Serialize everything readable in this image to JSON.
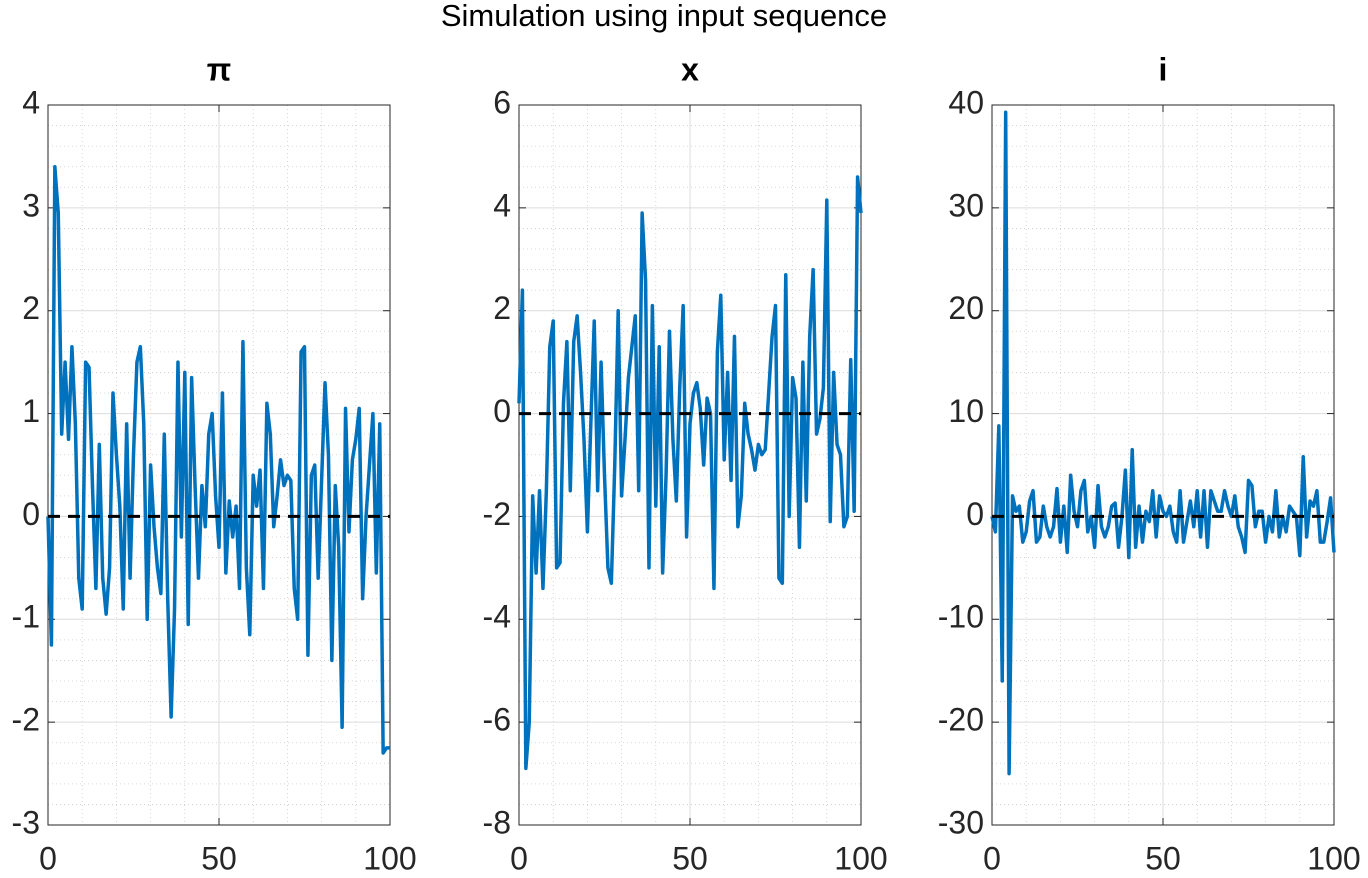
{
  "title": "Simulation using input sequence",
  "chart_data": [
    {
      "type": "line",
      "title": "π",
      "xlim": [
        0,
        100
      ],
      "xticks": [
        0,
        50,
        100
      ],
      "ylim": [
        -3,
        4
      ],
      "yticks": [
        -3,
        -2,
        -1,
        0,
        1,
        2,
        3,
        4
      ],
      "grid": true,
      "minor_grid": true,
      "minor_divisions": 5,
      "series": [
        {
          "color": "#0072bd",
          "x": [
            0,
            1,
            2,
            3,
            4,
            5,
            6,
            7,
            8,
            9,
            10,
            11,
            12,
            13,
            14,
            15,
            16,
            17,
            18,
            19,
            20,
            21,
            22,
            23,
            24,
            25,
            26,
            27,
            28,
            29,
            30,
            31,
            32,
            33,
            34,
            35,
            36,
            37,
            38,
            39,
            40,
            41,
            42,
            43,
            44,
            45,
            46,
            47,
            48,
            49,
            50,
            51,
            52,
            53,
            54,
            55,
            56,
            57,
            58,
            59,
            60,
            61,
            62,
            63,
            64,
            65,
            66,
            67,
            68,
            69,
            70,
            71,
            72,
            73,
            74,
            75,
            76,
            77,
            78,
            79,
            80,
            81,
            82,
            83,
            84,
            85,
            86,
            87,
            88,
            89,
            90,
            91,
            92,
            93,
            94,
            95,
            96,
            97,
            98,
            99,
            100
          ],
          "values": [
            0,
            -1.25,
            3.4,
            2.95,
            0.8,
            1.5,
            0.75,
            1.65,
            0.9,
            -0.6,
            -0.9,
            1.5,
            1.45,
            0.3,
            -0.7,
            0.7,
            -0.6,
            -0.95,
            -0.5,
            1.2,
            0.6,
            0.1,
            -0.9,
            0.9,
            -0.6,
            0.6,
            1.5,
            1.65,
            0.9,
            -1.0,
            0.5,
            -0.1,
            -0.5,
            -0.75,
            0.8,
            -0.8,
            -1.95,
            -0.9,
            1.5,
            -0.2,
            1.4,
            -1.05,
            1.35,
            0.3,
            -0.6,
            0.3,
            -0.1,
            0.8,
            1.0,
            0.2,
            -0.3,
            1.2,
            -0.55,
            0.15,
            -0.2,
            0.1,
            -0.7,
            1.7,
            -0.5,
            -1.15,
            0.4,
            0.1,
            0.45,
            -0.7,
            1.1,
            0.8,
            -0.1,
            0.2,
            0.55,
            0.3,
            0.4,
            0.35,
            -0.7,
            -1.0,
            1.6,
            1.65,
            -1.35,
            0.4,
            0.5,
            -0.6,
            0.35,
            1.3,
            0.6,
            -1.4,
            0.3,
            -0.3,
            -2.05,
            1.05,
            -0.15,
            0.55,
            0.75,
            1.05,
            -0.8,
            0.0,
            0.5,
            1.0,
            -0.55,
            0.9,
            -2.3,
            -2.25,
            -2.25
          ]
        },
        {
          "color": "#000000",
          "dashed": true,
          "x": [
            0,
            100
          ],
          "values": [
            0,
            0
          ]
        }
      ]
    },
    {
      "type": "line",
      "title": "x",
      "xlim": [
        0,
        100
      ],
      "xticks": [
        0,
        50,
        100
      ],
      "ylim": [
        -8,
        6
      ],
      "yticks": [
        -8,
        -6,
        -4,
        -2,
        0,
        2,
        4,
        6
      ],
      "grid": true,
      "minor_grid": true,
      "minor_divisions": 5,
      "series": [
        {
          "color": "#0072bd",
          "x": [
            0,
            1,
            2,
            3,
            4,
            5,
            6,
            7,
            8,
            9,
            10,
            11,
            12,
            13,
            14,
            15,
            16,
            17,
            18,
            19,
            20,
            21,
            22,
            23,
            24,
            25,
            26,
            27,
            28,
            29,
            30,
            31,
            32,
            33,
            34,
            35,
            36,
            37,
            38,
            39,
            40,
            41,
            42,
            43,
            44,
            45,
            46,
            47,
            48,
            49,
            50,
            51,
            52,
            53,
            54,
            55,
            56,
            57,
            58,
            59,
            60,
            61,
            62,
            63,
            64,
            65,
            66,
            67,
            68,
            69,
            70,
            71,
            72,
            73,
            74,
            75,
            76,
            77,
            78,
            79,
            80,
            81,
            82,
            83,
            84,
            85,
            86,
            87,
            88,
            89,
            90,
            91,
            92,
            93,
            94,
            95,
            96,
            97,
            98,
            99,
            100
          ],
          "values": [
            0.2,
            2.4,
            -6.9,
            -6.0,
            -1.6,
            -3.1,
            -1.5,
            -3.4,
            -1.5,
            1.3,
            1.8,
            -3.0,
            -2.9,
            0.2,
            1.4,
            -1.5,
            1.4,
            1.9,
            0.8,
            -0.5,
            -2.3,
            -0.2,
            1.8,
            -1.5,
            1.0,
            -1.2,
            -3.0,
            -3.3,
            -1.0,
            2.0,
            -1.6,
            -0.5,
            0.7,
            1.3,
            1.9,
            -1.5,
            3.9,
            2.6,
            -3.0,
            2.1,
            -1.8,
            1.3,
            -3.1,
            -1.2,
            1.6,
            -0.5,
            -1.7,
            0.5,
            2.1,
            -2.4,
            -0.2,
            0.4,
            0.6,
            0.1,
            -1.0,
            0.3,
            0.0,
            -3.4,
            1.2,
            2.3,
            -0.9,
            0.8,
            -1.3,
            1.5,
            -2.2,
            -1.6,
            0.2,
            -0.4,
            -0.7,
            -1.1,
            -0.6,
            -0.8,
            -0.7,
            0.4,
            1.5,
            2.1,
            -3.2,
            -3.3,
            2.7,
            -2.0,
            0.7,
            0.3,
            -2.6,
            1.0,
            -1.7,
            1.5,
            2.8,
            -0.4,
            -0.1,
            0.5,
            4.15,
            -2.1,
            0.8,
            -0.6,
            -0.8,
            -2.2,
            -2.0,
            1.05,
            -1.9,
            4.6,
            3.9
          ]
        },
        {
          "color": "#000000",
          "dashed": true,
          "x": [
            0,
            100
          ],
          "values": [
            0,
            0
          ]
        }
      ]
    },
    {
      "type": "line",
      "title": "i",
      "xlim": [
        0,
        100
      ],
      "xticks": [
        0,
        50,
        100
      ],
      "ylim": [
        -30,
        40
      ],
      "yticks": [
        -30,
        -20,
        -10,
        0,
        10,
        20,
        30,
        40
      ],
      "grid": true,
      "minor_grid": true,
      "minor_divisions": 5,
      "series": [
        {
          "color": "#0072bd",
          "x": [
            0,
            1,
            2,
            3,
            4,
            5,
            6,
            7,
            8,
            9,
            10,
            11,
            12,
            13,
            14,
            15,
            16,
            17,
            18,
            19,
            20,
            21,
            22,
            23,
            24,
            25,
            26,
            27,
            28,
            29,
            30,
            31,
            32,
            33,
            34,
            35,
            36,
            37,
            38,
            39,
            40,
            41,
            42,
            43,
            44,
            45,
            46,
            47,
            48,
            49,
            50,
            51,
            52,
            53,
            54,
            55,
            56,
            57,
            58,
            59,
            60,
            61,
            62,
            63,
            64,
            65,
            66,
            67,
            68,
            69,
            70,
            71,
            72,
            73,
            74,
            75,
            76,
            77,
            78,
            79,
            80,
            81,
            82,
            83,
            84,
            85,
            86,
            87,
            88,
            89,
            90,
            91,
            92,
            93,
            94,
            95,
            96,
            97,
            98,
            99,
            100
          ],
          "values": [
            0,
            -1.5,
            8.8,
            -16,
            39.3,
            -25,
            2,
            0.5,
            1,
            -2.5,
            -1.5,
            1.5,
            2.5,
            -2.5,
            -2,
            1,
            -1,
            -2,
            -1,
            2.7,
            -2.5,
            1,
            -3.5,
            4,
            0.5,
            -1,
            2.5,
            3.5,
            -1.5,
            0,
            -3,
            3,
            -1,
            -2,
            -1,
            1,
            1.3,
            -3,
            0,
            4.5,
            -4,
            6.5,
            -3,
            1,
            -2.5,
            0.5,
            -0.5,
            2.5,
            -2,
            2,
            0.5,
            0,
            1,
            -1.5,
            -2.5,
            2.5,
            -2.5,
            -0.5,
            1.5,
            -1,
            2.5,
            -2,
            2.5,
            -3,
            2.5,
            1.5,
            0.5,
            0.5,
            2.5,
            1,
            0,
            2,
            -1,
            -2,
            -3.5,
            3.5,
            3,
            -1,
            0.5,
            0.5,
            -2.5,
            0,
            -1.5,
            2.5,
            -2,
            0,
            -1.5,
            1,
            0.5,
            0,
            -3.8,
            5.8,
            -2,
            1.5,
            1,
            2.5,
            -2.5,
            -2.5,
            -0.5,
            1.8,
            -3.5
          ]
        },
        {
          "color": "#000000",
          "dashed": true,
          "x": [
            0,
            100
          ],
          "values": [
            0,
            0
          ]
        }
      ]
    }
  ]
}
